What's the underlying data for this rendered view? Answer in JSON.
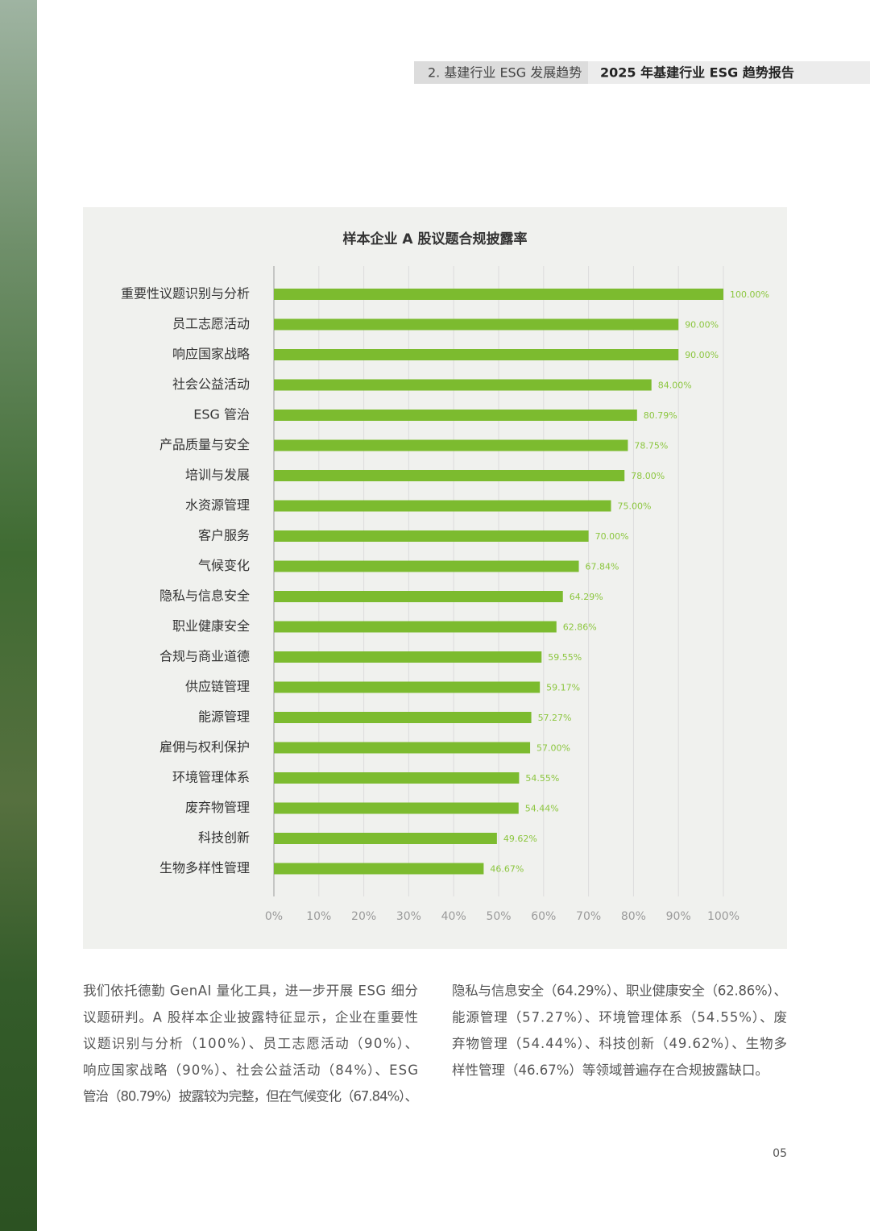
{
  "header": {
    "section": "2. 基建行业 ESG 发展趋势",
    "report": "2025 年基建行业 ESG 趋势报告"
  },
  "chart_data": {
    "type": "bar",
    "orientation": "horizontal",
    "title": "样本企业 A 股议题合规披露率",
    "categories": [
      "重要性议题识别与分析",
      "员工志愿活动",
      "响应国家战略",
      "社会公益活动",
      "ESG 管治",
      "产品质量与安全",
      "培训与发展",
      "水资源管理",
      "客户服务",
      "气候变化",
      "隐私与信息安全",
      "职业健康安全",
      "合规与商业道德",
      "供应链管理",
      "能源管理",
      "雇佣与权利保护",
      "环境管理体系",
      "废弃物管理",
      "科技创新",
      "生物多样性管理"
    ],
    "values": [
      100,
      90,
      90,
      84,
      80.79,
      78.75,
      78,
      75,
      70,
      67.84,
      64.29,
      62.86,
      59.55,
      59.17,
      57.27,
      57,
      54.55,
      54.44,
      49.62,
      46.67
    ],
    "value_labels": [
      "100.00%",
      "90.00%",
      "90.00%",
      "84.00%",
      "80.79%",
      "78.75%",
      "78.00%",
      "75.00%",
      "70.00%",
      "67.84%",
      "64.29%",
      "62.86%",
      "59.55%",
      "59.17%",
      "57.27%",
      "57.00%",
      "54.55%",
      "54.44%",
      "49.62%",
      "46.67%"
    ],
    "color": "#7cbb2f",
    "xlim": [
      0,
      100
    ],
    "xticks": [
      {
        "value": 0,
        "label": "0%"
      },
      {
        "value": 10,
        "label": "10%"
      },
      {
        "value": 20,
        "label": "20%"
      },
      {
        "value": 30,
        "label": "30%"
      },
      {
        "value": 40,
        "label": "40%"
      },
      {
        "value": 50,
        "label": "50%"
      },
      {
        "value": 60,
        "label": "60%"
      },
      {
        "value": 70,
        "label": "70%"
      },
      {
        "value": 80,
        "label": "80%"
      },
      {
        "value": 90,
        "label": "90%"
      },
      {
        "value": 100,
        "label": "100%"
      }
    ],
    "grid": true
  },
  "body": {
    "left": [
      "我们依托德勤 GenAI 量化工具，进一步开展 ESG 细分",
      "议题研判。A 股样本企业披露特征显示，企业在重要性",
      "议题识别与分析（100%）、员工志愿活动（90%）、",
      "响应国家战略（90%）、社会公益活动（84%）、ESG",
      "管治（80.79%）披露较为完整，但在气候变化（67.84%）、"
    ],
    "right": [
      "隐私与信息安全（64.29%）、职业健康安全（62.86%）、",
      "能源管理（57.27%）、环境管理体系（54.55%）、废",
      "弃物管理（54.44%）、科技创新（49.62%）、生物多",
      "样性管理（46.67%）等领域普遍存在合规披露缺口。"
    ]
  },
  "page_number": "05"
}
